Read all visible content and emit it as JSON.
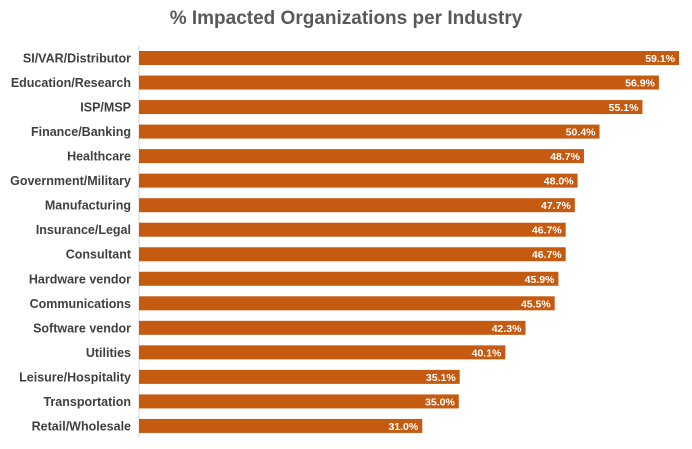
{
  "chart_data": {
    "type": "bar",
    "orientation": "horizontal",
    "title": "% Impacted Organizations per Industry",
    "xlabel": "",
    "ylabel": "",
    "xlim": [
      0,
      60
    ],
    "grid": false,
    "legend": "none",
    "bar_color": "#C55A11",
    "categories": [
      "SI/VAR/Distributor",
      "Education/Research",
      "ISP/MSP",
      "Finance/Banking",
      "Healthcare",
      "Government/Military",
      "Manufacturing",
      "Insurance/Legal",
      "Consultant",
      "Hardware vendor",
      "Communications",
      "Software vendor",
      "Utilities",
      "Leisure/Hospitality",
      "Transportation",
      "Retail/Wholesale"
    ],
    "values": [
      59.1,
      56.9,
      55.1,
      50.4,
      48.7,
      48.0,
      47.7,
      46.7,
      46.7,
      45.9,
      45.5,
      42.3,
      40.1,
      35.1,
      35.0,
      31.0
    ],
    "value_labels": [
      "59.1%",
      "56.9%",
      "55.1%",
      "50.4%",
      "48.7%",
      "48.0%",
      "47.7%",
      "46.7%",
      "46.7%",
      "45.9%",
      "45.5%",
      "42.3%",
      "40.1%",
      "35.1%",
      "35.0%",
      "31.0%"
    ]
  }
}
